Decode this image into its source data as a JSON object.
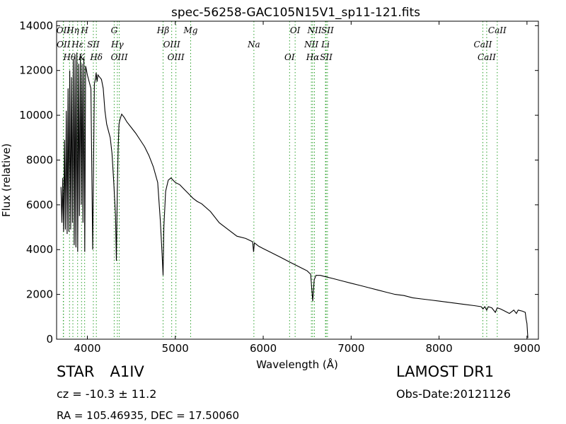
{
  "chart_data": {
    "type": "line",
    "title": "spec-56258-GAC105N15V1_sp11-121.fits",
    "xlabel": "Wavelength (Å)",
    "ylabel": "Flux (relative)",
    "xlim": [
      3650,
      9130
    ],
    "ylim": [
      0,
      14200
    ],
    "xticks": [
      4000,
      5000,
      6000,
      7000,
      8000,
      9000
    ],
    "yticks": [
      0,
      2000,
      4000,
      6000,
      8000,
      10000,
      12000,
      14000
    ],
    "grid": false,
    "line_color": "#000000",
    "marker_color": "#2ca02c",
    "series": [
      {
        "x": [
          3700,
          3710,
          3720,
          3730,
          3740,
          3750,
          3760,
          3770,
          3780,
          3790,
          3800,
          3810,
          3820,
          3830,
          3840,
          3850,
          3860,
          3870,
          3880,
          3890,
          3900,
          3910,
          3920,
          3930,
          3940,
          3950,
          3960,
          3970,
          3980,
          3990,
          4000,
          4020,
          4040,
          4060,
          4080,
          4090,
          4100,
          4110,
          4120,
          4140,
          4160,
          4180,
          4200,
          4220,
          4240,
          4260,
          4280,
          4300,
          4320,
          4330,
          4340,
          4350,
          4360,
          4370,
          4390,
          4420,
          4450,
          4500,
          4550,
          4600,
          4650,
          4700,
          4750,
          4800,
          4830,
          4850,
          4861,
          4870,
          4890,
          4920,
          4950,
          5000,
          5050,
          5100,
          5150,
          5200,
          5250,
          5300,
          5400,
          5500,
          5600,
          5700,
          5800,
          5880,
          5890,
          5900,
          5950,
          6000,
          6100,
          6200,
          6300,
          6400,
          6500,
          6540,
          6563,
          6580,
          6600,
          6650,
          6700,
          6800,
          6900,
          7000,
          7100,
          7200,
          7300,
          7400,
          7500,
          7600,
          7700,
          7800,
          7900,
          8000,
          8100,
          8200,
          8300,
          8400,
          8480,
          8500,
          8520,
          8542,
          8560,
          8600,
          8640,
          8662,
          8700,
          8750,
          8800,
          8850,
          8880,
          8900,
          8950,
          8980,
          8990,
          9000,
          9010
        ],
        "y": [
          6800,
          5200,
          7200,
          4800,
          8900,
          4900,
          10200,
          4700,
          11200,
          4800,
          12000,
          4900,
          11700,
          5200,
          12500,
          4200,
          12600,
          4100,
          12800,
          3900,
          12300,
          5500,
          12700,
          6000,
          12300,
          5200,
          12600,
          3900,
          12200,
          12000,
          11800,
          11500,
          11200,
          4000,
          11400,
          11600,
          11900,
          11500,
          11800,
          11700,
          11600,
          11200,
          10200,
          9600,
          9300,
          9000,
          8300,
          7000,
          5500,
          3500,
          6500,
          8500,
          9600,
          9800,
          10050,
          9900,
          9700,
          9450,
          9200,
          8900,
          8600,
          8200,
          7700,
          7000,
          5300,
          3800,
          2850,
          5000,
          6600,
          7100,
          7200,
          7000,
          6900,
          6700,
          6500,
          6300,
          6150,
          6050,
          5700,
          5200,
          4900,
          4600,
          4500,
          4350,
          3900,
          4300,
          4150,
          4050,
          3850,
          3650,
          3450,
          3250,
          3050,
          2900,
          1700,
          2650,
          2850,
          2850,
          2800,
          2700,
          2600,
          2500,
          2400,
          2300,
          2200,
          2100,
          2000,
          1950,
          1850,
          1800,
          1750,
          1700,
          1650,
          1600,
          1550,
          1500,
          1450,
          1350,
          1450,
          1300,
          1450,
          1400,
          1200,
          1400,
          1350,
          1250,
          1150,
          1300,
          1150,
          1300,
          1250,
          1200,
          900,
          700,
          50
        ]
      }
    ],
    "lines": [
      {
        "label": "OII",
        "wavelength": 3726
      },
      {
        "label": "OII",
        "wavelength": 3729
      },
      {
        "label": "Hθ",
        "wavelength": 3797
      },
      {
        "label": "Hη",
        "wavelength": 3835
      },
      {
        "label": "Hε",
        "wavelength": 3889
      },
      {
        "label": "K",
        "wavelength": 3934
      },
      {
        "label": "H",
        "wavelength": 3969
      },
      {
        "label": "SII",
        "wavelength": 4068
      },
      {
        "label": "Hδ",
        "wavelength": 4102
      },
      {
        "label": "G",
        "wavelength": 4305
      },
      {
        "label": "Hγ",
        "wavelength": 4341
      },
      {
        "label": "OIII",
        "wavelength": 4363
      },
      {
        "label": "Hβ",
        "wavelength": 4861
      },
      {
        "label": "OIII",
        "wavelength": 4959
      },
      {
        "label": "OIII",
        "wavelength": 5007
      },
      {
        "label": "Mg",
        "wavelength": 5175
      },
      {
        "label": "Na",
        "wavelength": 5894
      },
      {
        "label": "OI",
        "wavelength": 6300
      },
      {
        "label": "OI",
        "wavelength": 6363
      },
      {
        "label": "NII",
        "wavelength": 6548
      },
      {
        "label": "Hα",
        "wavelength": 6563
      },
      {
        "label": "NII",
        "wavelength": 6583
      },
      {
        "label": "Li",
        "wavelength": 6708
      },
      {
        "label": "SII",
        "wavelength": 6716
      },
      {
        "label": "SII",
        "wavelength": 6731
      },
      {
        "label": "CaII",
        "wavelength": 8498
      },
      {
        "label": "CaII",
        "wavelength": 8542
      },
      {
        "label": "CaII",
        "wavelength": 8662
      }
    ]
  },
  "info": {
    "class_label": "STAR",
    "subclass": "A1IV",
    "cz": "cz = -10.3 ± 11.2",
    "coords": "RA = 105.46935, DEC = 17.50060",
    "survey": "LAMOST DR1",
    "obs_date": "Obs-Date:20121126"
  }
}
